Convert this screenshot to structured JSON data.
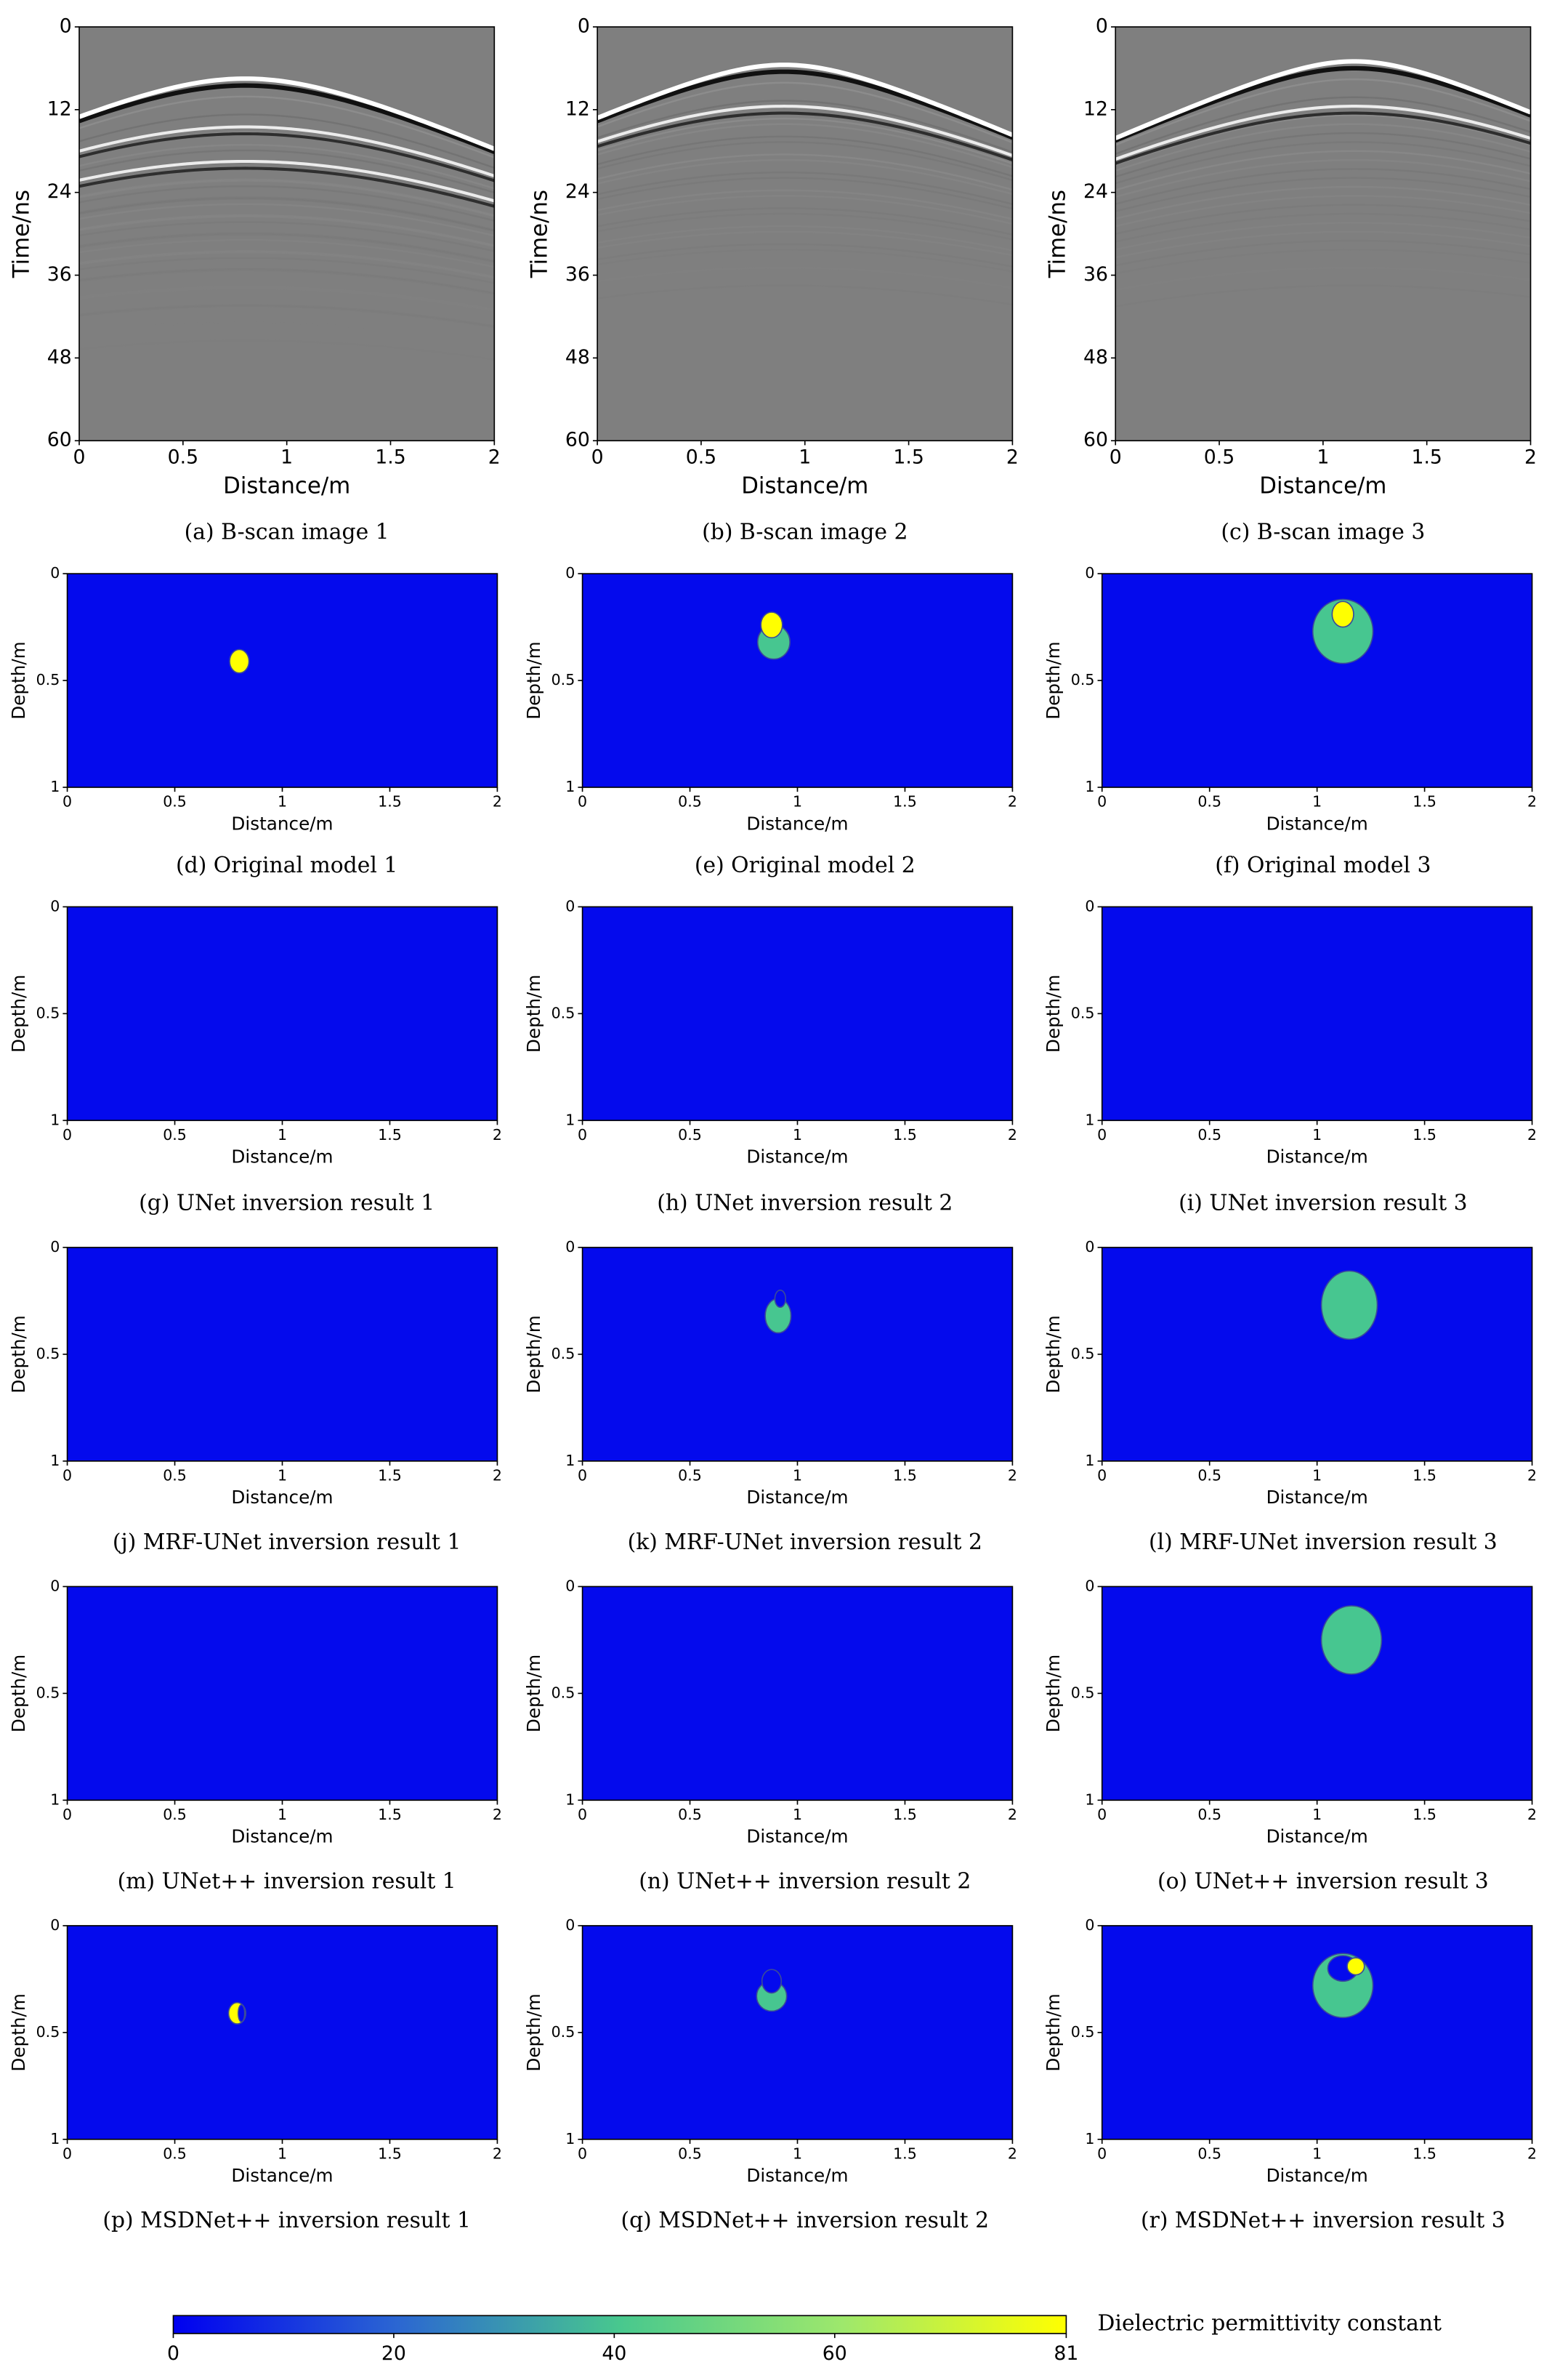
{
  "chart_data": [
    {
      "type": "bscan",
      "caption": "(a) B-scan image 1",
      "xlabel": "Distance/m",
      "ylabel": "Time/ns",
      "xlim": [
        0,
        2
      ],
      "xticks": [
        0,
        0.5,
        1,
        1.5,
        2
      ],
      "ylim": [
        0,
        60
      ],
      "yticks": [
        0,
        12,
        24,
        36,
        48,
        60
      ],
      "reflections": [
        {
          "x0": 0.8,
          "t0": 7.5
        },
        {
          "x0": 0.8,
          "t0": 14.5
        },
        {
          "x0": 0.8,
          "t0": 19.5
        }
      ]
    },
    {
      "type": "bscan",
      "caption": "(b) B-scan image 2",
      "xlabel": "Distance/m",
      "ylabel": "Time/ns",
      "xlim": [
        0,
        2
      ],
      "xticks": [
        0,
        0.5,
        1,
        1.5,
        2
      ],
      "ylim": [
        0,
        60
      ],
      "yticks": [
        0,
        12,
        24,
        36,
        48,
        60
      ],
      "reflections": [
        {
          "x0": 0.9,
          "t0": 5.5
        },
        {
          "x0": 0.9,
          "t0": 11.5
        }
      ]
    },
    {
      "type": "bscan",
      "caption": "(c) B-scan image 3",
      "xlabel": "Distance/m",
      "ylabel": "Time/ns",
      "xlim": [
        0,
        2
      ],
      "xticks": [
        0,
        0.5,
        1,
        1.5,
        2
      ],
      "ylim": [
        0,
        60
      ],
      "yticks": [
        0,
        12,
        24,
        36,
        48,
        60
      ],
      "reflections": [
        {
          "x0": 1.15,
          "t0": 5
        },
        {
          "x0": 1.15,
          "t0": 11.5
        }
      ]
    },
    {
      "type": "model",
      "caption": "(d) Original model 1",
      "xlabel": "Distance/m",
      "ylabel": "Depth/m",
      "xlim": [
        0,
        2
      ],
      "xticks": [
        0,
        0.5,
        1,
        1.5,
        2
      ],
      "ylim": [
        0,
        1
      ],
      "yticks": [
        0,
        0.5,
        1
      ],
      "objects": [
        {
          "cx": 0.8,
          "cy": 0.41,
          "rx": 0.045,
          "ry": 0.055,
          "eps": 81
        }
      ]
    },
    {
      "type": "model",
      "caption": "(e) Original model 2",
      "xlabel": "Distance/m",
      "ylabel": "Depth/m",
      "xlim": [
        0,
        2
      ],
      "xticks": [
        0,
        0.5,
        1,
        1.5,
        2
      ],
      "ylim": [
        0,
        1
      ],
      "yticks": [
        0,
        0.5,
        1
      ],
      "objects": [
        {
          "cx": 0.89,
          "cy": 0.32,
          "rx": 0.075,
          "ry": 0.08,
          "eps": 40
        },
        {
          "cx": 0.88,
          "cy": 0.24,
          "rx": 0.05,
          "ry": 0.06,
          "eps": 81
        }
      ]
    },
    {
      "type": "model",
      "caption": "(f) Original model 3",
      "xlabel": "Distance/m",
      "ylabel": "Depth/m",
      "xlim": [
        0,
        2
      ],
      "xticks": [
        0,
        0.5,
        1,
        1.5,
        2
      ],
      "ylim": [
        0,
        1
      ],
      "yticks": [
        0,
        0.5,
        1
      ],
      "objects": [
        {
          "cx": 1.12,
          "cy": 0.27,
          "rx": 0.14,
          "ry": 0.15,
          "eps": 40
        },
        {
          "cx": 1.12,
          "cy": 0.19,
          "rx": 0.05,
          "ry": 0.06,
          "eps": 81
        }
      ]
    },
    {
      "type": "model",
      "caption": "(g) UNet inversion result 1",
      "xlabel": "Distance/m",
      "ylabel": "Depth/m",
      "xlim": [
        0,
        2
      ],
      "xticks": [
        0,
        0.5,
        1,
        1.5,
        2
      ],
      "ylim": [
        0,
        1
      ],
      "yticks": [
        0,
        0.5,
        1
      ],
      "objects": []
    },
    {
      "type": "model",
      "caption": "(h) UNet inversion result 2",
      "xlabel": "Distance/m",
      "ylabel": "Depth/m",
      "xlim": [
        0,
        2
      ],
      "xticks": [
        0,
        0.5,
        1,
        1.5,
        2
      ],
      "ylim": [
        0,
        1
      ],
      "yticks": [
        0,
        0.5,
        1
      ],
      "objects": []
    },
    {
      "type": "model",
      "caption": "(i) UNet inversion result 3",
      "xlabel": "Distance/m",
      "ylabel": "Depth/m",
      "xlim": [
        0,
        2
      ],
      "xticks": [
        0,
        0.5,
        1,
        1.5,
        2
      ],
      "ylim": [
        0,
        1
      ],
      "yticks": [
        0,
        0.5,
        1
      ],
      "objects": []
    },
    {
      "type": "model",
      "caption": "(j) MRF-UNet inversion result 1",
      "xlabel": "Distance/m",
      "ylabel": "Depth/m",
      "xlim": [
        0,
        2
      ],
      "xticks": [
        0,
        0.5,
        1,
        1.5,
        2
      ],
      "ylim": [
        0,
        1
      ],
      "yticks": [
        0,
        0.5,
        1
      ],
      "objects": []
    },
    {
      "type": "model",
      "caption": "(k) MRF-UNet inversion result 2",
      "xlabel": "Distance/m",
      "ylabel": "Depth/m",
      "xlim": [
        0,
        2
      ],
      "xticks": [
        0,
        0.5,
        1,
        1.5,
        2
      ],
      "ylim": [
        0,
        1
      ],
      "yticks": [
        0,
        0.5,
        1
      ],
      "objects": [
        {
          "cx": 0.91,
          "cy": 0.32,
          "rx": 0.06,
          "ry": 0.08,
          "eps": 40
        },
        {
          "cx": 0.92,
          "cy": 0.24,
          "rx": 0.025,
          "ry": 0.04,
          "eps": 2
        }
      ]
    },
    {
      "type": "model",
      "caption": "(l) MRF-UNet inversion result 3",
      "xlabel": "Distance/m",
      "ylabel": "Depth/m",
      "xlim": [
        0,
        2
      ],
      "xticks": [
        0,
        0.5,
        1,
        1.5,
        2
      ],
      "ylim": [
        0,
        1
      ],
      "yticks": [
        0,
        0.5,
        1
      ],
      "objects": [
        {
          "cx": 1.15,
          "cy": 0.27,
          "rx": 0.13,
          "ry": 0.16,
          "eps": 40
        }
      ]
    },
    {
      "type": "model",
      "caption": "(m) UNet++ inversion result 1",
      "xlabel": "Distance/m",
      "ylabel": "Depth/m",
      "xlim": [
        0,
        2
      ],
      "xticks": [
        0,
        0.5,
        1,
        1.5,
        2
      ],
      "ylim": [
        0,
        1
      ],
      "yticks": [
        0,
        0.5,
        1
      ],
      "objects": []
    },
    {
      "type": "model",
      "caption": "(n) UNet++ inversion result 2",
      "xlabel": "Distance/m",
      "ylabel": "Depth/m",
      "xlim": [
        0,
        2
      ],
      "xticks": [
        0,
        0.5,
        1,
        1.5,
        2
      ],
      "ylim": [
        0,
        1
      ],
      "yticks": [
        0,
        0.5,
        1
      ],
      "objects": []
    },
    {
      "type": "model",
      "caption": "(o) UNet++ inversion result 3",
      "xlabel": "Distance/m",
      "ylabel": "Depth/m",
      "xlim": [
        0,
        2
      ],
      "xticks": [
        0,
        0.5,
        1,
        1.5,
        2
      ],
      "ylim": [
        0,
        1
      ],
      "yticks": [
        0,
        0.5,
        1
      ],
      "objects": [
        {
          "cx": 1.16,
          "cy": 0.25,
          "rx": 0.14,
          "ry": 0.16,
          "eps": 40
        }
      ]
    },
    {
      "type": "model",
      "caption": "(p) MSDNet++ inversion result 1",
      "xlabel": "Distance/m",
      "ylabel": "Depth/m",
      "xlim": [
        0,
        2
      ],
      "xticks": [
        0,
        0.5,
        1,
        1.5,
        2
      ],
      "ylim": [
        0,
        1
      ],
      "yticks": [
        0,
        0.5,
        1
      ],
      "objects": [
        {
          "cx": 0.79,
          "cy": 0.41,
          "rx": 0.04,
          "ry": 0.05,
          "eps": 81
        },
        {
          "cx": 0.81,
          "cy": 0.41,
          "rx": 0.015,
          "ry": 0.04,
          "eps": 2
        }
      ]
    },
    {
      "type": "model",
      "caption": "(q) MSDNet++ inversion result 2",
      "xlabel": "Distance/m",
      "ylabel": "Depth/m",
      "xlim": [
        0,
        2
      ],
      "xticks": [
        0,
        0.5,
        1,
        1.5,
        2
      ],
      "ylim": [
        0,
        1
      ],
      "yticks": [
        0,
        0.5,
        1
      ],
      "objects": [
        {
          "cx": 0.88,
          "cy": 0.33,
          "rx": 0.07,
          "ry": 0.07,
          "eps": 40
        },
        {
          "cx": 0.88,
          "cy": 0.26,
          "rx": 0.045,
          "ry": 0.055,
          "eps": 2
        }
      ]
    },
    {
      "type": "model",
      "caption": "(r) MSDNet++ inversion result 3",
      "xlabel": "Distance/m",
      "ylabel": "Depth/m",
      "xlim": [
        0,
        2
      ],
      "xticks": [
        0,
        0.5,
        1,
        1.5,
        2
      ],
      "ylim": [
        0,
        1
      ],
      "yticks": [
        0,
        0.5,
        1
      ],
      "objects": [
        {
          "cx": 1.12,
          "cy": 0.28,
          "rx": 0.14,
          "ry": 0.15,
          "eps": 40
        },
        {
          "cx": 1.12,
          "cy": 0.2,
          "rx": 0.07,
          "ry": 0.06,
          "eps": 2
        },
        {
          "cx": 1.18,
          "cy": 0.19,
          "rx": 0.04,
          "ry": 0.04,
          "eps": 81
        }
      ]
    }
  ],
  "background_eps": 2,
  "colorbar": {
    "label": "Dielectric permittivity constant",
    "lim": [
      0,
      81
    ],
    "ticks": [
      0,
      20,
      40,
      60,
      81
    ],
    "colors": [
      "#0000f0",
      "#2b66d2",
      "#48c88e",
      "#9ee86c",
      "#ffff00"
    ]
  }
}
